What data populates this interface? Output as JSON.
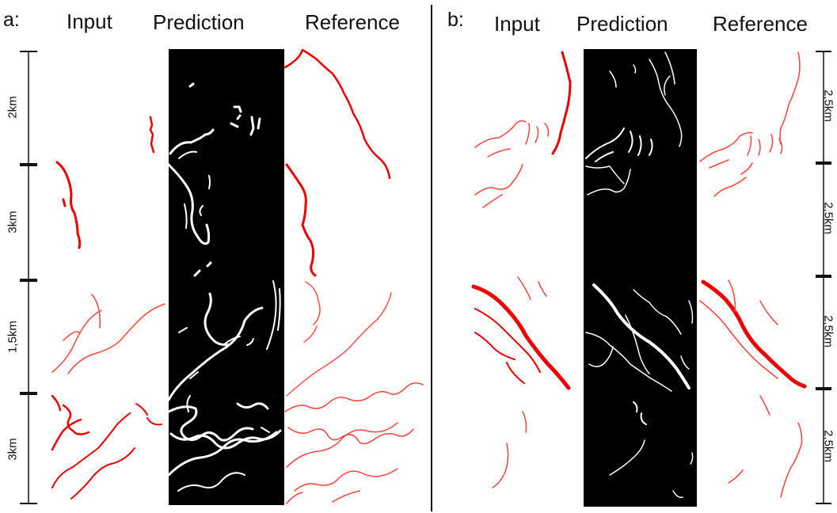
{
  "colors": {
    "trace": "#ff0000",
    "trace_light": "#ff5050",
    "prediction_bg": "#000000",
    "prediction_line": "#ffffff",
    "scale_bar": "#111111"
  },
  "panel_a": {
    "letter": "a:",
    "columns": [
      "Input",
      "Prediction",
      "Reference"
    ],
    "scale_labels": [
      "2km",
      "3km",
      "1,5km",
      "3km"
    ]
  },
  "panel_b": {
    "letter": "b:",
    "columns": [
      "Input",
      "Prediction",
      "Reference"
    ],
    "scale_labels": [
      "2,5km",
      "2,5km",
      "2,5km",
      "2,5km"
    ]
  }
}
